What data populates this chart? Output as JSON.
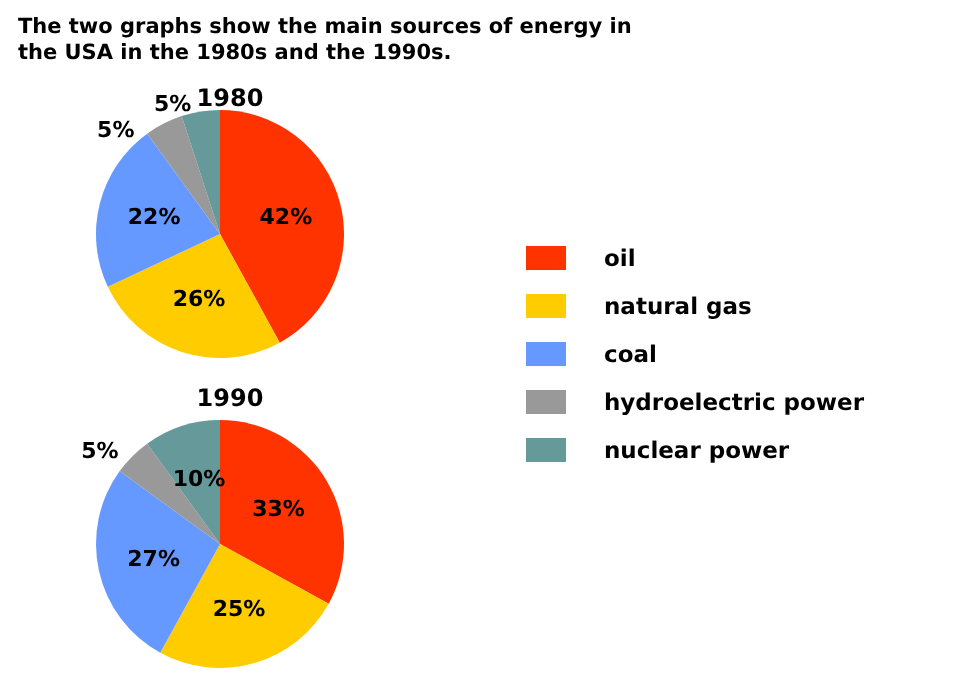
{
  "chart_data": {
    "type": "pie",
    "title": "The two graphs show the main sources of energy in the USA in the 1980s and the 1990s.",
    "categories": [
      "oil",
      "natural gas",
      "coal",
      "hydroelectric power",
      "nuclear power"
    ],
    "colors": [
      "#ff3300",
      "#ffcc00",
      "#6699ff",
      "#999999",
      "#669999"
    ],
    "legend": "right",
    "series": [
      {
        "name": "1980",
        "values": [
          42,
          26,
          22,
          5,
          5
        ],
        "value_labels": [
          "42%",
          "26%",
          "22%",
          "5%",
          "5%"
        ]
      },
      {
        "name": "1990",
        "values": [
          33,
          25,
          27,
          5,
          10
        ],
        "value_labels": [
          "33%",
          "25%",
          "27%",
          "5%",
          "10%"
        ]
      }
    ]
  }
}
